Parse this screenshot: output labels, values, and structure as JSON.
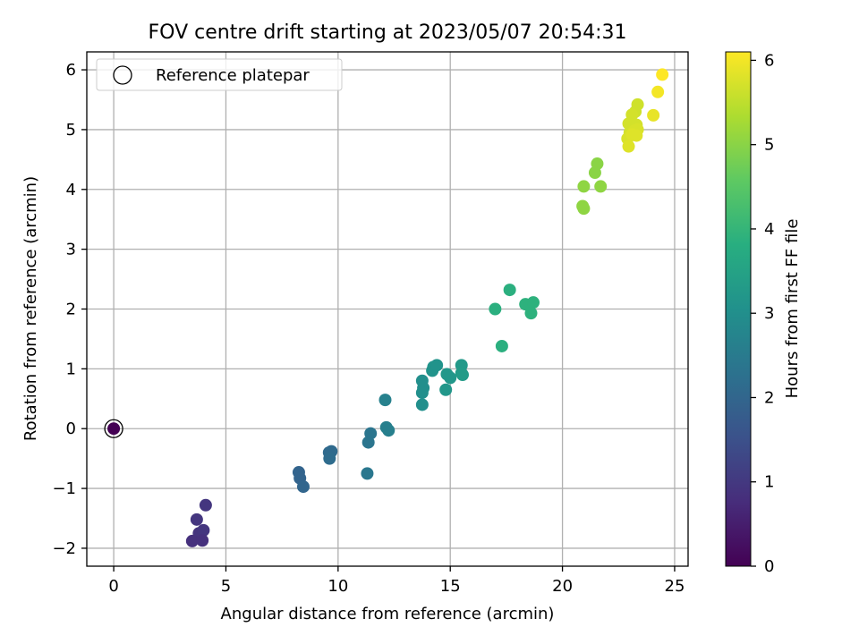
{
  "chart_data": {
    "type": "scatter",
    "title": "FOV centre drift starting at 2023/05/07 20:54:31",
    "xlabel": "Angular distance from reference (arcmin)",
    "ylabel": "Rotation from reference (arcmin)",
    "xlim": [
      -1.2,
      25.6
    ],
    "ylim": [
      -2.3,
      6.3
    ],
    "xticks": [
      0,
      5,
      10,
      15,
      20,
      25
    ],
    "yticks": [
      -2,
      -1,
      0,
      1,
      2,
      3,
      4,
      5,
      6
    ],
    "xtick_labels": [
      "0",
      "5",
      "10",
      "15",
      "20",
      "25"
    ],
    "ytick_labels": [
      "−2",
      "−1",
      "0",
      "1",
      "2",
      "3",
      "4",
      "5",
      "6"
    ],
    "grid": true,
    "legend": {
      "placement": "top-left",
      "entries": [
        "Reference platepar"
      ]
    },
    "reference_point": {
      "x": 0,
      "y": 0,
      "hours": 0
    },
    "colorbar": {
      "label": "Hours from first FF file",
      "range": [
        0,
        6.1
      ],
      "ticks": [
        0,
        1,
        2,
        3,
        4,
        5,
        6
      ],
      "tick_labels": [
        "0",
        "1",
        "2",
        "3",
        "4",
        "5",
        "6"
      ],
      "colormap": "viridis"
    },
    "points": [
      {
        "x": 0,
        "y": 0,
        "h": 0
      },
      {
        "x": 4.1,
        "y": -1.28,
        "h": 0.95
      },
      {
        "x": 3.7,
        "y": -1.52,
        "h": 0.95
      },
      {
        "x": 3.8,
        "y": -1.75,
        "h": 0.9
      },
      {
        "x": 4.0,
        "y": -1.7,
        "h": 0.95
      },
      {
        "x": 3.5,
        "y": -1.88,
        "h": 0.85
      },
      {
        "x": 3.95,
        "y": -1.87,
        "h": 0.85
      },
      {
        "x": 8.25,
        "y": -0.73,
        "h": 1.95
      },
      {
        "x": 8.3,
        "y": -0.83,
        "h": 1.95
      },
      {
        "x": 8.45,
        "y": -0.97,
        "h": 2.0
      },
      {
        "x": 9.6,
        "y": -0.4,
        "h": 2.1
      },
      {
        "x": 9.7,
        "y": -0.38,
        "h": 2.1
      },
      {
        "x": 9.62,
        "y": -0.5,
        "h": 2.15
      },
      {
        "x": 11.45,
        "y": -0.08,
        "h": 2.35
      },
      {
        "x": 11.35,
        "y": -0.23,
        "h": 2.35
      },
      {
        "x": 11.3,
        "y": -0.75,
        "h": 2.4
      },
      {
        "x": 12.1,
        "y": 0.48,
        "h": 2.65
      },
      {
        "x": 12.15,
        "y": 0.02,
        "h": 2.6
      },
      {
        "x": 12.25,
        "y": -0.03,
        "h": 2.6
      },
      {
        "x": 13.75,
        "y": 0.8,
        "h": 3.0
      },
      {
        "x": 13.8,
        "y": 0.68,
        "h": 3.0
      },
      {
        "x": 13.75,
        "y": 0.6,
        "h": 3.0
      },
      {
        "x": 13.75,
        "y": 0.4,
        "h": 3.0
      },
      {
        "x": 14.2,
        "y": 0.97,
        "h": 3.1
      },
      {
        "x": 14.25,
        "y": 1.03,
        "h": 3.1
      },
      {
        "x": 14.4,
        "y": 1.06,
        "h": 3.1
      },
      {
        "x": 14.85,
        "y": 0.91,
        "h": 3.2
      },
      {
        "x": 15.0,
        "y": 0.85,
        "h": 3.2
      },
      {
        "x": 14.8,
        "y": 0.65,
        "h": 3.2
      },
      {
        "x": 15.5,
        "y": 1.06,
        "h": 3.25
      },
      {
        "x": 15.5,
        "y": 0.93,
        "h": 3.3
      },
      {
        "x": 15.55,
        "y": 0.9,
        "h": 3.3
      },
      {
        "x": 17.0,
        "y": 2.0,
        "h": 3.85
      },
      {
        "x": 17.65,
        "y": 2.32,
        "h": 3.85
      },
      {
        "x": 18.35,
        "y": 2.08,
        "h": 3.9
      },
      {
        "x": 18.7,
        "y": 2.11,
        "h": 3.9
      },
      {
        "x": 18.6,
        "y": 1.93,
        "h": 3.9
      },
      {
        "x": 17.3,
        "y": 1.38,
        "h": 3.85
      },
      {
        "x": 21.55,
        "y": 4.43,
        "h": 5.0
      },
      {
        "x": 21.45,
        "y": 4.28,
        "h": 5.0
      },
      {
        "x": 20.95,
        "y": 4.05,
        "h": 5.05
      },
      {
        "x": 21.7,
        "y": 4.05,
        "h": 5.05
      },
      {
        "x": 20.9,
        "y": 3.72,
        "h": 5.05
      },
      {
        "x": 20.95,
        "y": 3.68,
        "h": 5.05
      },
      {
        "x": 23.35,
        "y": 5.42,
        "h": 5.65
      },
      {
        "x": 23.25,
        "y": 5.3,
        "h": 5.65
      },
      {
        "x": 23.1,
        "y": 5.25,
        "h": 5.7
      },
      {
        "x": 22.95,
        "y": 5.1,
        "h": 5.7
      },
      {
        "x": 23.3,
        "y": 5.08,
        "h": 5.7
      },
      {
        "x": 23.0,
        "y": 4.95,
        "h": 5.7
      },
      {
        "x": 23.2,
        "y": 4.98,
        "h": 5.75
      },
      {
        "x": 23.35,
        "y": 5.0,
        "h": 5.75
      },
      {
        "x": 22.9,
        "y": 4.85,
        "h": 5.75
      },
      {
        "x": 23.1,
        "y": 4.92,
        "h": 5.8
      },
      {
        "x": 23.3,
        "y": 4.9,
        "h": 5.8
      },
      {
        "x": 22.95,
        "y": 4.72,
        "h": 5.8
      },
      {
        "x": 24.05,
        "y": 5.24,
        "h": 5.9
      },
      {
        "x": 24.25,
        "y": 5.63,
        "h": 6.0
      },
      {
        "x": 24.45,
        "y": 5.92,
        "h": 6.1
      }
    ]
  }
}
